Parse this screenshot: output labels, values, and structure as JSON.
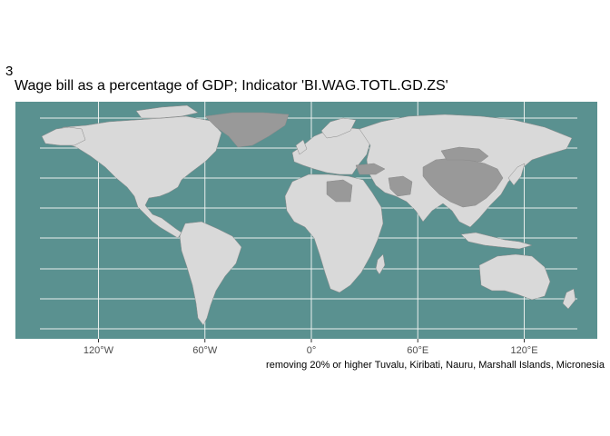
{
  "plot": {
    "tag": "3",
    "title": "Wage bill as a percentage of GDP; Indicator 'BI.WAG.TOTL.GD.ZS'",
    "caption": "removing 20% or higher Tuvalu, Kiribati, Nauru, Marshall Islands, Micronesia"
  },
  "map": {
    "type": "choropleth-world",
    "projection": "equirectangular",
    "x_axis": {
      "unit": "longitude",
      "ticks": [
        {
          "value": -120,
          "label": "120°W"
        },
        {
          "value": -60,
          "label": "60°W"
        },
        {
          "value": 0,
          "label": "0°"
        },
        {
          "value": 60,
          "label": "60°E"
        },
        {
          "value": 120,
          "label": "120°E"
        }
      ]
    },
    "colors": {
      "panel_background": "#5a9190",
      "land": "#d9d9d9",
      "highlight": "#999999",
      "grid": "#eaf0ee",
      "border": "#8a8a8a"
    },
    "highlighted_regions": [
      "Greenland",
      "China",
      "Libya",
      "Iran",
      "Turkey",
      "Mongolia"
    ]
  }
}
